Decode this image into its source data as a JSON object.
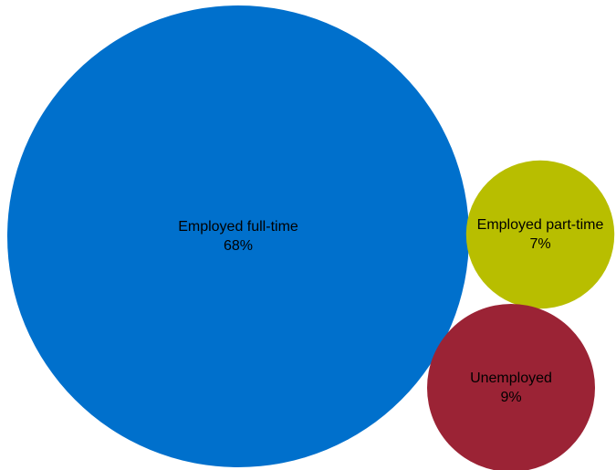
{
  "chart_data": {
    "type": "bubble",
    "unit": "%",
    "series": [
      {
        "name": "Employed full-time",
        "value": 68,
        "color": "#0070CC"
      },
      {
        "name": "Employed part-time",
        "value": 7,
        "color": "#B8BE00"
      },
      {
        "name": "Unemployed",
        "value": 9,
        "color": "#9B2335"
      }
    ],
    "legend": "none",
    "grid": false
  }
}
